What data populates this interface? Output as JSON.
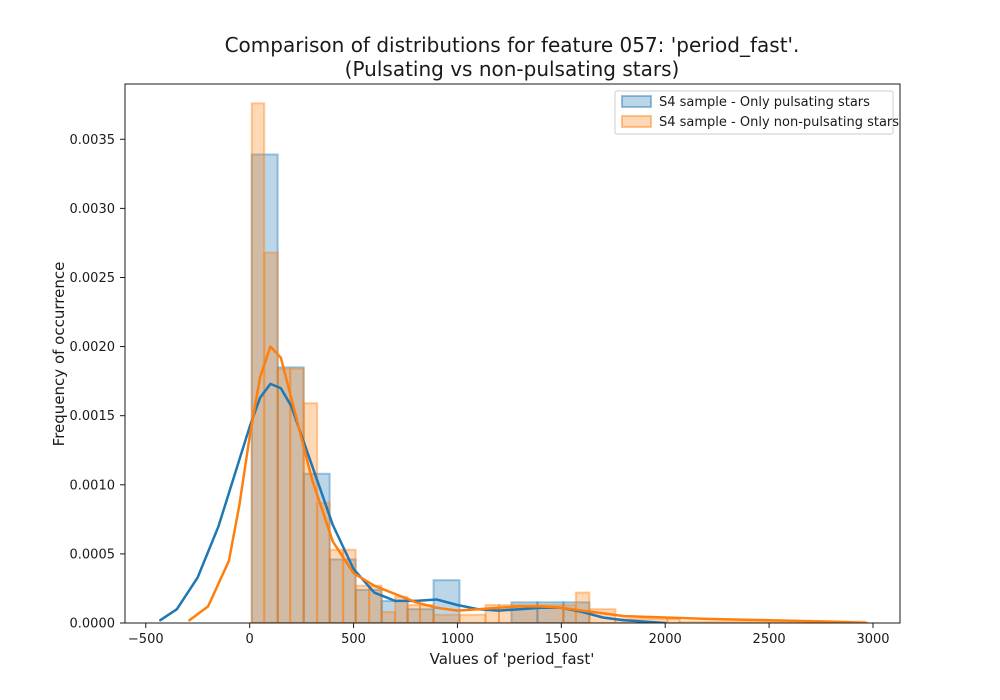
{
  "chart_data": {
    "type": "histogram",
    "title_line1": "Comparison of distributions for feature 057: 'period_fast'.",
    "title_line2": "(Pulsating vs non-pulsating stars)",
    "xlabel": "Values of 'period_fast'",
    "ylabel": "Frequency of occurrence",
    "xlim": [
      -600,
      3130
    ],
    "ylim": [
      0,
      0.0039
    ],
    "x_ticks": [
      -500,
      0,
      500,
      1000,
      1500,
      2000,
      2500,
      3000
    ],
    "y_ticks": [
      0,
      0.0005,
      0.001,
      0.0015,
      0.002,
      0.0025,
      0.003,
      0.0035
    ],
    "x_tick_labels": [
      "−500",
      "0",
      "500",
      "1000",
      "1500",
      "2000",
      "2500",
      "3000"
    ],
    "y_tick_labels": [
      "0.0000",
      "0.0005",
      "0.0010",
      "0.0015",
      "0.0020",
      "0.0025",
      "0.0030",
      "0.0035"
    ],
    "grid": false,
    "legend_position": "top-right",
    "series": [
      {
        "name": "S4 sample - Only pulsating stars",
        "color": "#1f77b4",
        "bins": [
          {
            "x0": 10,
            "x1": 135,
            "y": 0.00339
          },
          {
            "x0": 135,
            "x1": 260,
            "y": 0.00185
          },
          {
            "x0": 260,
            "x1": 385,
            "y": 0.00108
          },
          {
            "x0": 385,
            "x1": 510,
            "y": 0.00046
          },
          {
            "x0": 510,
            "x1": 635,
            "y": 0.00024
          },
          {
            "x0": 635,
            "x1": 760,
            "y": 0.00016
          },
          {
            "x0": 760,
            "x1": 885,
            "y": 0.0001
          },
          {
            "x0": 885,
            "x1": 1010,
            "y": 0.00031
          },
          {
            "x0": 1260,
            "x1": 1385,
            "y": 0.00015
          },
          {
            "x0": 1385,
            "x1": 1510,
            "y": 0.00015
          },
          {
            "x0": 1510,
            "x1": 1635,
            "y": 0.00015
          }
        ],
        "kde": [
          [
            -430,
            2e-05
          ],
          [
            -350,
            0.0001
          ],
          [
            -250,
            0.00033
          ],
          [
            -150,
            0.0007
          ],
          [
            -50,
            0.00118
          ],
          [
            0,
            0.00142
          ],
          [
            50,
            0.00163
          ],
          [
            100,
            0.00173
          ],
          [
            150,
            0.0017
          ],
          [
            200,
            0.00157
          ],
          [
            300,
            0.00114
          ],
          [
            400,
            0.00071
          ],
          [
            500,
            0.00039
          ],
          [
            600,
            0.00022
          ],
          [
            700,
            0.00016
          ],
          [
            800,
            0.00016
          ],
          [
            900,
            0.00017
          ],
          [
            1000,
            0.00013
          ],
          [
            1100,
            0.0001
          ],
          [
            1200,
            9e-05
          ],
          [
            1300,
            0.0001
          ],
          [
            1400,
            0.00011
          ],
          [
            1500,
            0.00011
          ],
          [
            1600,
            8e-05
          ],
          [
            1700,
            4e-05
          ],
          [
            1800,
            2e-05
          ],
          [
            1900,
            1e-05
          ],
          [
            2000,
            0.0
          ]
        ]
      },
      {
        "name": "S4 sample - Only non-pulsating stars",
        "color": "#ff7f0e",
        "bins": [
          {
            "x0": 10,
            "x1": 70,
            "y": 0.00376
          },
          {
            "x0": 70,
            "x1": 135,
            "y": 0.00268
          },
          {
            "x0": 135,
            "x1": 195,
            "y": 0.00184
          },
          {
            "x0": 195,
            "x1": 260,
            "y": 0.00184
          },
          {
            "x0": 260,
            "x1": 325,
            "y": 0.00159
          },
          {
            "x0": 325,
            "x1": 385,
            "y": 0.00087
          },
          {
            "x0": 385,
            "x1": 450,
            "y": 0.00053
          },
          {
            "x0": 450,
            "x1": 510,
            "y": 0.00053
          },
          {
            "x0": 510,
            "x1": 575,
            "y": 0.00027
          },
          {
            "x0": 575,
            "x1": 635,
            "y": 0.00027
          },
          {
            "x0": 635,
            "x1": 700,
            "y": 8e-05
          },
          {
            "x0": 700,
            "x1": 760,
            "y": 0.00019
          },
          {
            "x0": 760,
            "x1": 820,
            "y": 0.00013
          },
          {
            "x0": 820,
            "x1": 885,
            "y": 0.00013
          },
          {
            "x0": 885,
            "x1": 1010,
            "y": 6e-05
          },
          {
            "x0": 1010,
            "x1": 1135,
            "y": 6e-05
          },
          {
            "x0": 1135,
            "x1": 1200,
            "y": 0.00013
          },
          {
            "x0": 1200,
            "x1": 1510,
            "y": 0.00013
          },
          {
            "x0": 1510,
            "x1": 1570,
            "y": 0.00013
          },
          {
            "x0": 1570,
            "x1": 1635,
            "y": 0.00022
          },
          {
            "x0": 1635,
            "x1": 1760,
            "y": 0.0001
          },
          {
            "x0": 1760,
            "x1": 2010,
            "y": 3e-05
          },
          {
            "x0": 2010,
            "x1": 2070,
            "y": 3e-05
          },
          {
            "x0": 2070,
            "x1": 2960,
            "y": 1e-05
          }
        ],
        "kde": [
          [
            -290,
            2e-05
          ],
          [
            -200,
            0.00012
          ],
          [
            -100,
            0.00045
          ],
          [
            -50,
            0.00085
          ],
          [
            0,
            0.00135
          ],
          [
            50,
            0.00178
          ],
          [
            100,
            0.002
          ],
          [
            150,
            0.00192
          ],
          [
            200,
            0.00163
          ],
          [
            300,
            0.00104
          ],
          [
            400,
            0.00059
          ],
          [
            500,
            0.00036
          ],
          [
            600,
            0.00027
          ],
          [
            700,
            0.00021
          ],
          [
            800,
            0.00015
          ],
          [
            900,
            0.00011
          ],
          [
            1000,
            9e-05
          ],
          [
            1100,
            0.0001
          ],
          [
            1200,
            0.00011
          ],
          [
            1300,
            0.00012
          ],
          [
            1400,
            0.00012
          ],
          [
            1500,
            0.00011
          ],
          [
            1600,
            9e-05
          ],
          [
            1700,
            7e-05
          ],
          [
            1800,
            5e-05
          ],
          [
            2000,
            4e-05
          ],
          [
            2200,
            3e-05
          ],
          [
            2500,
            2e-05
          ],
          [
            2800,
            1e-05
          ],
          [
            2970,
            0.0
          ]
        ]
      }
    ]
  }
}
